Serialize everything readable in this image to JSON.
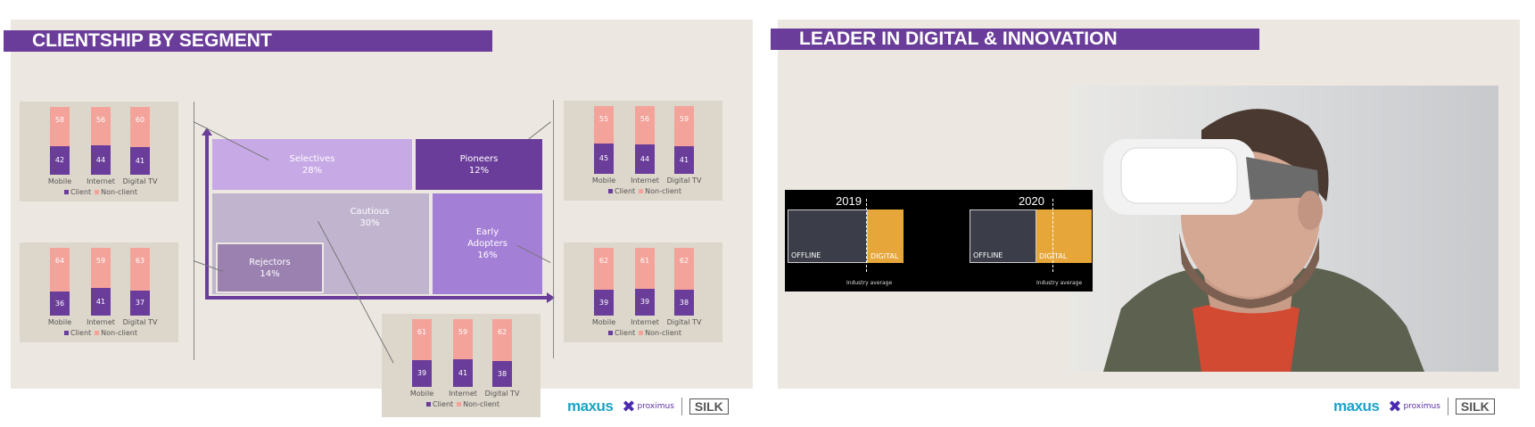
{
  "slide1": {
    "title": "CLIENTSHIP BY SEGMENT",
    "legend": {
      "client": "Client",
      "nonclient": "Non-client"
    },
    "categories": [
      "Mobile",
      "Internet",
      "Digital TV"
    ],
    "segments": [
      {
        "name": "Selectives",
        "pct": "28%"
      },
      {
        "name": "Pioneers",
        "pct": "12%"
      },
      {
        "name": "Cautious",
        "pct": "30%"
      },
      {
        "name": "Early",
        "name2": "Adopters",
        "pct": "16%"
      },
      {
        "name": "Rejectors",
        "pct": "14%"
      }
    ],
    "cards": [
      {
        "client": [
          42,
          44,
          41
        ],
        "nonclient": [
          58,
          56,
          60
        ]
      },
      {
        "client": [
          36,
          41,
          37
        ],
        "nonclient": [
          64,
          59,
          63
        ]
      },
      {
        "client": [
          45,
          44,
          41
        ],
        "nonclient": [
          55,
          56,
          59
        ]
      },
      {
        "client": [
          39,
          39,
          38
        ],
        "nonclient": [
          62,
          61,
          62
        ]
      },
      {
        "client": [
          39,
          41,
          38
        ],
        "nonclient": [
          61,
          59,
          62
        ]
      }
    ],
    "colors": {
      "client": "#6a3d9a",
      "nonclient": "#f4a39b"
    }
  },
  "slide2": {
    "title": "LEADER IN DIGITAL & INNOVATION",
    "years": [
      "2019",
      "2020"
    ],
    "offline_label": "OFFLINE",
    "digital_label": "DIGITAL",
    "avg_label": "Industry average"
  },
  "logos": {
    "maxus": "maxus",
    "proximus": "proximus",
    "silk": "SILK"
  }
}
